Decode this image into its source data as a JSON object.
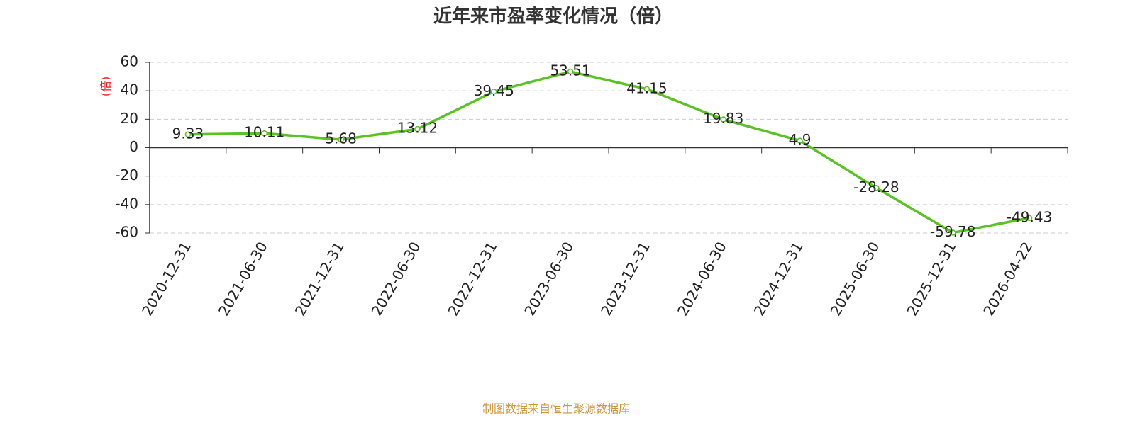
{
  "chart_data": {
    "type": "line",
    "title": "近年来市盈率变化情况（倍）",
    "y_label": "(倍)",
    "source": "制图数据来自恒生聚源数据库",
    "categories": [
      "2020-12-31",
      "2021-06-30",
      "2021-12-31",
      "2022-06-30",
      "2022-12-31",
      "2023-06-30",
      "2023-12-31",
      "2024-06-30",
      "2024-12-31",
      "2025-06-30",
      "2025-12-31",
      "2026-04-22"
    ],
    "values": [
      9.33,
      10.11,
      5.68,
      13.12,
      39.45,
      53.51,
      41.15,
      19.83,
      4.9,
      -28.28,
      -59.78,
      -49.43
    ],
    "color": "#5ac126",
    "ylim": [
      -60,
      60
    ],
    "yticks": [
      -60,
      -40,
      -20,
      0,
      20,
      40,
      60
    ],
    "grid": true
  }
}
